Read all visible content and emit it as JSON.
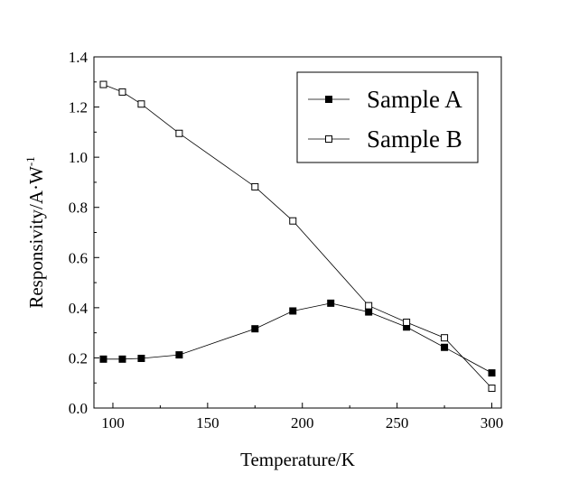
{
  "chart_data": {
    "type": "line",
    "xlabel": "Temperature/K",
    "ylabel": "Responsivity/A·W",
    "ylabel_superscript": "-1",
    "xlim": [
      90,
      305
    ],
    "ylim": [
      0.0,
      1.4
    ],
    "xticks": [
      100,
      150,
      200,
      250,
      300
    ],
    "yticks": [
      0.0,
      0.2,
      0.4,
      0.6,
      0.8,
      1.0,
      1.2,
      1.4
    ],
    "legend_position": "top-right",
    "grid": false,
    "series": [
      {
        "name": "Sample A",
        "marker": "filled-square",
        "color": "#000000",
        "x": [
          95,
          105,
          115,
          135,
          175,
          195,
          215,
          235,
          255,
          275,
          300
        ],
        "y": [
          0.195,
          0.195,
          0.198,
          0.212,
          0.316,
          0.387,
          0.418,
          0.383,
          0.323,
          0.242,
          0.14
        ]
      },
      {
        "name": "Sample B",
        "marker": "open-square",
        "color": "#000000",
        "x": [
          95,
          105,
          115,
          135,
          175,
          195,
          235,
          255,
          275,
          300
        ],
        "y": [
          1.29,
          1.26,
          1.212,
          1.095,
          0.882,
          0.746,
          0.408,
          0.342,
          0.28,
          0.079
        ]
      }
    ]
  }
}
